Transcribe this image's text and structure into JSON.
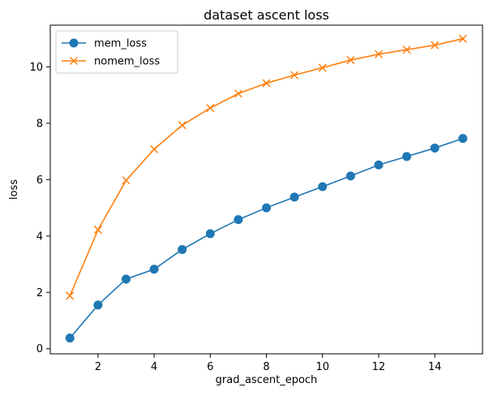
{
  "chart_data": {
    "type": "line",
    "title": "dataset ascent loss",
    "xlabel": "grad_ascent_epoch",
    "ylabel": "loss",
    "x": [
      1,
      2,
      3,
      4,
      5,
      6,
      7,
      8,
      9,
      10,
      11,
      12,
      13,
      14,
      15
    ],
    "xlim": [
      0.3,
      15.7
    ],
    "ylim": [
      -0.18,
      11.48
    ],
    "xticks": [
      2,
      4,
      6,
      8,
      10,
      12,
      14
    ],
    "yticks": [
      0,
      2,
      4,
      6,
      8,
      10
    ],
    "grid": false,
    "legend": "upper-left",
    "series": [
      {
        "name": "mem_loss",
        "marker": "circle",
        "color": "#1f77b4",
        "values": [
          0.38,
          1.55,
          2.47,
          2.82,
          3.52,
          4.08,
          4.58,
          5.0,
          5.38,
          5.75,
          6.13,
          6.52,
          6.82,
          7.12,
          7.46
        ]
      },
      {
        "name": "nomem_loss",
        "marker": "x",
        "color": "#ff7f0e",
        "values": [
          1.88,
          4.22,
          5.97,
          7.08,
          7.93,
          8.54,
          9.05,
          9.42,
          9.71,
          9.97,
          10.24,
          10.45,
          10.61,
          10.77,
          11.0
        ]
      }
    ]
  }
}
